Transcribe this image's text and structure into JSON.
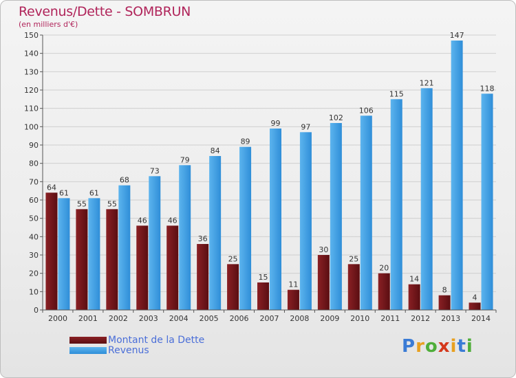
{
  "chart_data": {
    "type": "bar",
    "title": "Revenus/Dette - SOMBRUN",
    "subtitle": "(en milliers d'€)",
    "categories": [
      "2000",
      "2001",
      "2002",
      "2003",
      "2004",
      "2005",
      "2006",
      "2007",
      "2008",
      "2009",
      "2010",
      "2011",
      "2012",
      "2013",
      "2014"
    ],
    "series": [
      {
        "name": "Montant de la Dette",
        "color": "#7a1a1e",
        "values": [
          64,
          55,
          55,
          46,
          46,
          36,
          25,
          15,
          11,
          30,
          25,
          20,
          14,
          8,
          4
        ]
      },
      {
        "name": "Revenus",
        "color": "#3a9be0",
        "values": [
          61,
          61,
          68,
          73,
          79,
          84,
          89,
          99,
          97,
          102,
          106,
          115,
          121,
          147,
          118
        ]
      }
    ],
    "ylim": [
      0,
      150
    ],
    "yticks": [
      0,
      10,
      20,
      30,
      40,
      50,
      60,
      70,
      80,
      90,
      100,
      110,
      120,
      130,
      140,
      150
    ],
    "grid": true,
    "legend_placement": "bottom-left"
  },
  "logo": {
    "text": "Proxiti",
    "letters": [
      "P",
      "r",
      "o",
      "x",
      "i",
      "t",
      "i"
    ],
    "colors": [
      "#3a7bd5",
      "#e8a020",
      "#4fae3a",
      "#d4381c",
      "#e8a020",
      "#3a7bd5",
      "#4fae3a"
    ]
  }
}
